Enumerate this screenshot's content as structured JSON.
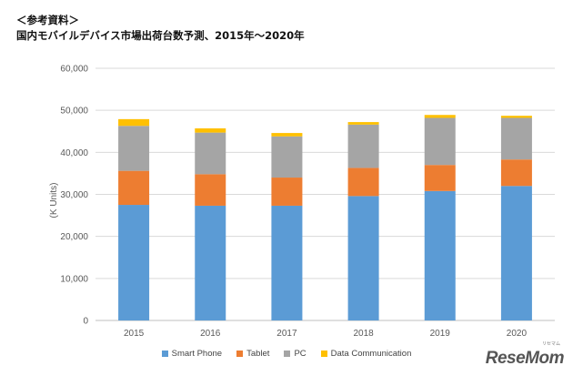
{
  "header": {
    "label": "＜参考資料＞",
    "title": "国内モバイルデバイス市場出荷台数予測、2015年〜2020年"
  },
  "logo": {
    "text": "ReseMom",
    "kana": "リセマム"
  },
  "chart_data": {
    "type": "bar",
    "stacked": true,
    "title": "国内モバイルデバイス市場出荷台数予測、2015年〜2020年",
    "xlabel": "",
    "ylabel": "(K Units)",
    "ylim": [
      0,
      60000
    ],
    "yticks": [
      0,
      10000,
      20000,
      30000,
      40000,
      50000,
      60000
    ],
    "ytick_labels": [
      "0",
      "10,000",
      "20,000",
      "30,000",
      "40,000",
      "50,000",
      "60,000"
    ],
    "categories": [
      "2015",
      "2016",
      "2017",
      "2018",
      "2019",
      "2020"
    ],
    "legend_position": "bottom",
    "series": [
      {
        "name": "Smart Phone",
        "color": "#5B9BD5",
        "values": [
          27500,
          27300,
          27300,
          29600,
          30800,
          32000
        ]
      },
      {
        "name": "Tablet",
        "color": "#ED7D31",
        "values": [
          8100,
          7500,
          6700,
          6700,
          6200,
          6300
        ]
      },
      {
        "name": "PC",
        "color": "#A5A5A5",
        "values": [
          10700,
          9900,
          9800,
          10300,
          11200,
          9900
        ]
      },
      {
        "name": "Data Communication",
        "color": "#FFC000",
        "values": [
          1600,
          1000,
          800,
          600,
          700,
          500
        ]
      }
    ]
  }
}
